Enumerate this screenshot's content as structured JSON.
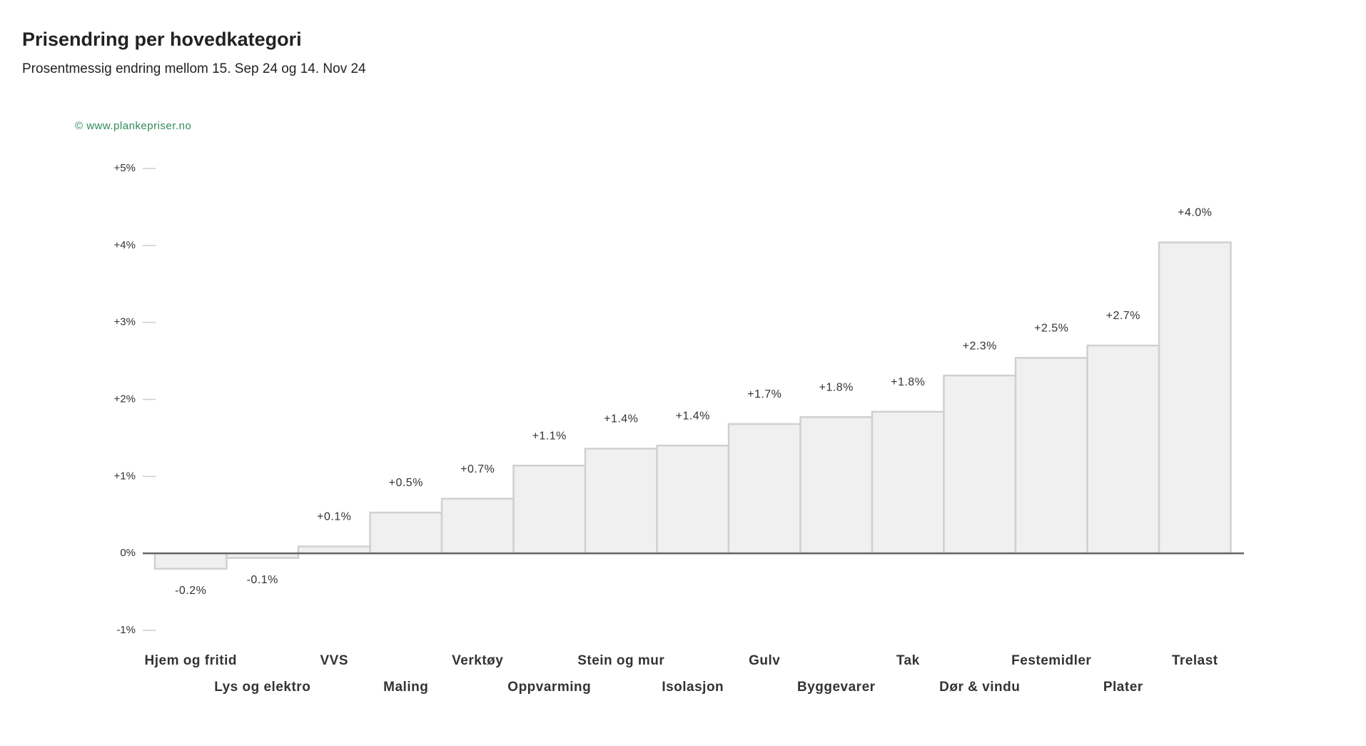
{
  "chart_data": {
    "type": "bar",
    "title": "Prisendring per hovedkategori",
    "subtitle": "Prosentmessig endring mellom 15. Sep 24 og 14. Nov 24",
    "credit": "© www.plankepriser.no",
    "categories": [
      "Hjem og fritid",
      "Lys og elektro",
      "VVS",
      "Maling",
      "Verktøy",
      "Oppvarming",
      "Stein og mur",
      "Isolasjon",
      "Gulv",
      "Byggevarer",
      "Tak",
      "Dør & vindu",
      "Festemidler",
      "Plater",
      "Trelast"
    ],
    "values": [
      -0.2,
      -0.06,
      0.09,
      0.53,
      0.71,
      1.14,
      1.36,
      1.4,
      1.68,
      1.77,
      1.84,
      2.31,
      2.54,
      2.7,
      4.04
    ],
    "value_labels": [
      "-0.2%",
      "-0.1%",
      "+0.1%",
      "+0.5%",
      "+0.7%",
      "+1.1%",
      "+1.4%",
      "+1.4%",
      "+1.7%",
      "+1.8%",
      "+1.8%",
      "+2.3%",
      "+2.5%",
      "+2.7%",
      "+4.0%"
    ],
    "color": "#f0f0f0",
    "ylim": [
      -1,
      5
    ],
    "yticks": [
      {
        "value": -1,
        "label": "-1%"
      },
      {
        "value": 0,
        "label": "0%"
      },
      {
        "value": 1,
        "label": "+1%"
      },
      {
        "value": 2,
        "label": "+2%"
      },
      {
        "value": 3,
        "label": "+3%"
      },
      {
        "value": 4,
        "label": "+4%"
      },
      {
        "value": 5,
        "label": "+5%"
      }
    ],
    "grid": false
  }
}
